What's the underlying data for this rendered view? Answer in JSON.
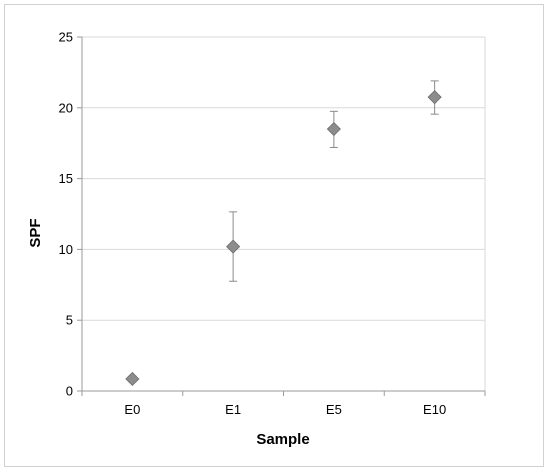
{
  "chart_data": {
    "type": "scatter",
    "xlabel": "Sample",
    "ylabel": "SPF",
    "categories": [
      "E0",
      "E1",
      "E5",
      "E10"
    ],
    "values": [
      0.85,
      10.2,
      18.5,
      20.75
    ],
    "error_low": [
      0.65,
      7.75,
      17.2,
      19.55
    ],
    "error_high": [
      1.05,
      12.65,
      19.75,
      21.9
    ],
    "ylim": [
      0,
      25
    ],
    "yticks": [
      "0",
      "5",
      "10",
      "15",
      "20",
      "25"
    ],
    "grid": true,
    "legend": "none",
    "marker": "diamond",
    "colors": {
      "marker": "#8c8c8c",
      "marker_edge": "#6e6e6e",
      "errorbar": "#8a8a8a",
      "grid": "#d9d9d9",
      "axis": "#9a9a9a"
    }
  }
}
